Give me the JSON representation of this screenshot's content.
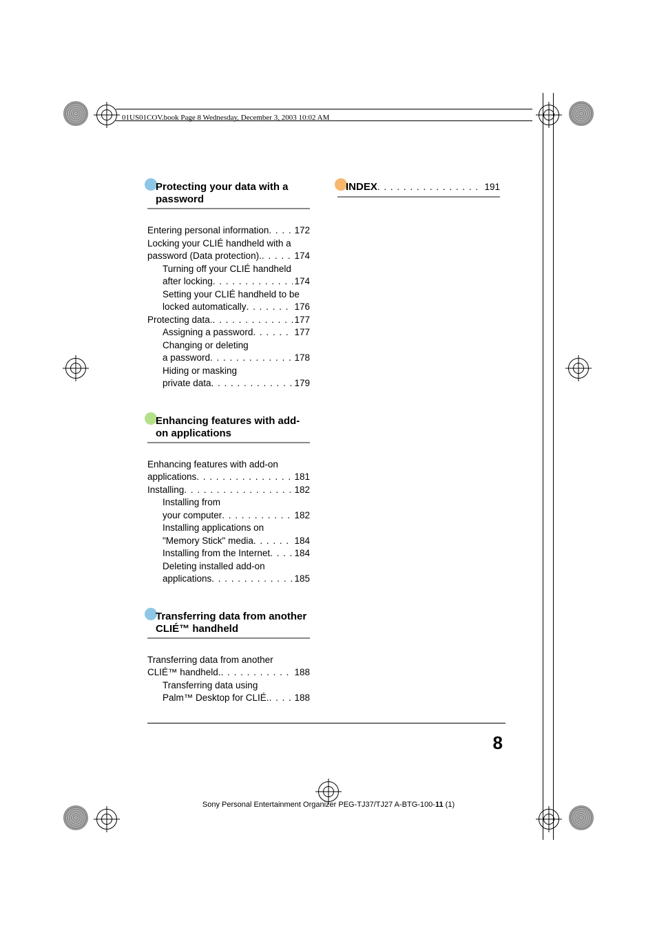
{
  "running_head": "01US01COV.book  Page 8  Wednesday, December 3, 2003  10:02 AM",
  "sections": {
    "protecting": {
      "title": "Protecting your data with a password",
      "dot_color": "#8ec6e6"
    },
    "enhancing": {
      "title": "Enhancing features with add-on applications",
      "dot_color": "#b4e08a"
    },
    "transferring": {
      "title": "Transferring data from another CLIÉ™ handheld",
      "dot_color": "#8ec6e6"
    },
    "index": {
      "title": "INDEX",
      "dot_color": "#f7b76d",
      "page": "191"
    }
  },
  "toc": {
    "protecting": [
      {
        "text_a": "Entering personal information",
        "page": "172",
        "indent": false
      },
      {
        "text_a": "Locking your CLIÉ handheld with a",
        "cont": true,
        "indent": false
      },
      {
        "text_a": "password (Data protection).",
        "page": "174",
        "indent": false
      },
      {
        "text_a": "Turning off your CLIÉ handheld",
        "cont": true,
        "indent": true
      },
      {
        "text_a": "after locking",
        "page": "174",
        "indent": true
      },
      {
        "text_a": "Setting your CLIÉ handheld to be",
        "cont": true,
        "indent": true
      },
      {
        "text_a": "locked automatically",
        "page": "176",
        "indent": true
      },
      {
        "text_a": "Protecting data.",
        "page": "177",
        "indent": false
      },
      {
        "text_a": "Assigning a password",
        "page": "177",
        "indent": true
      },
      {
        "text_a": "Changing or deleting",
        "cont": true,
        "indent": true
      },
      {
        "text_a": "a password",
        "page": "178",
        "indent": true
      },
      {
        "text_a": "Hiding or masking",
        "cont": true,
        "indent": true
      },
      {
        "text_a": "private data",
        "page": "179",
        "indent": true
      }
    ],
    "enhancing": [
      {
        "text_a": "Enhancing features with add-on",
        "cont": true,
        "indent": false
      },
      {
        "text_a": "applications",
        "page": "181",
        "indent": false
      },
      {
        "text_a": "Installing",
        "page": "182",
        "indent": false
      },
      {
        "text_a": "Installing from",
        "cont": true,
        "indent": true
      },
      {
        "text_a": "your computer",
        "page": "182",
        "indent": true
      },
      {
        "text_a": "Installing applications on",
        "cont": true,
        "indent": true
      },
      {
        "text_a": "\"Memory Stick\" media",
        "page": "184",
        "indent": true
      },
      {
        "text_a": "Installing from the Internet",
        "page": "184",
        "indent": true
      },
      {
        "text_a": "Deleting installed add-on",
        "cont": true,
        "indent": true
      },
      {
        "text_a": "applications",
        "page": "185",
        "indent": true
      }
    ],
    "transferring": [
      {
        "text_a": "Transferring data from another",
        "cont": true,
        "indent": false
      },
      {
        "text_a": "CLIÉ™ handheld.",
        "page": "188",
        "indent": false
      },
      {
        "text_a": "Transferring data using",
        "cont": true,
        "indent": true
      },
      {
        "text_a": "Palm™ Desktop for CLIÉ.",
        "page": "188",
        "indent": true
      }
    ]
  },
  "page_number": "8",
  "footer": {
    "prefix": "Sony Personal Entertainment Organizer  PEG-TJ37/TJ27  A-BTG-100-",
    "bold": "11",
    "suffix": " (1)"
  }
}
